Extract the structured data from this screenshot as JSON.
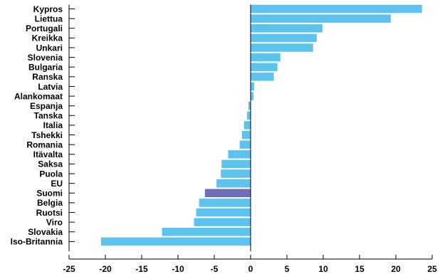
{
  "chart_data": {
    "type": "bar",
    "orientation": "horizontal",
    "categories": [
      "Kypros",
      "Liettua",
      "Portugali",
      "Kreikka",
      "Unkari",
      "Slovenia",
      "Bulgaria",
      "Ranska",
      "Latvia",
      "Alankomaat",
      "Espanja",
      "Tanska",
      "Italia",
      "Tshekki",
      "Romania",
      "Itävalta",
      "Saksa",
      "Puola",
      "EU",
      "Suomi",
      "Belgia",
      "Ruotsi",
      "Viro",
      "Slovakia",
      "Iso-Britannia"
    ],
    "values": [
      23.6,
      19.3,
      9.9,
      9.1,
      8.6,
      4.1,
      3.7,
      3.2,
      0.5,
      0.4,
      -0.3,
      -0.5,
      -0.9,
      -1.2,
      -1.5,
      -3.1,
      -4.0,
      -4.1,
      -4.7,
      -6.3,
      -7.1,
      -7.5,
      -7.8,
      -12.2,
      -20.6
    ],
    "highlight_category": "Suomi",
    "colors": {
      "default": "#5bc3ee",
      "highlight": "#6e6fb6"
    },
    "xlim": [
      -25,
      25
    ],
    "x_ticks": [
      "-25",
      "-20",
      "-15",
      "-10",
      "-5",
      "0",
      "5",
      "10",
      "15",
      "20",
      "25"
    ],
    "title": "",
    "xlabel": "",
    "ylabel": "",
    "grid": false,
    "legend": "none"
  }
}
